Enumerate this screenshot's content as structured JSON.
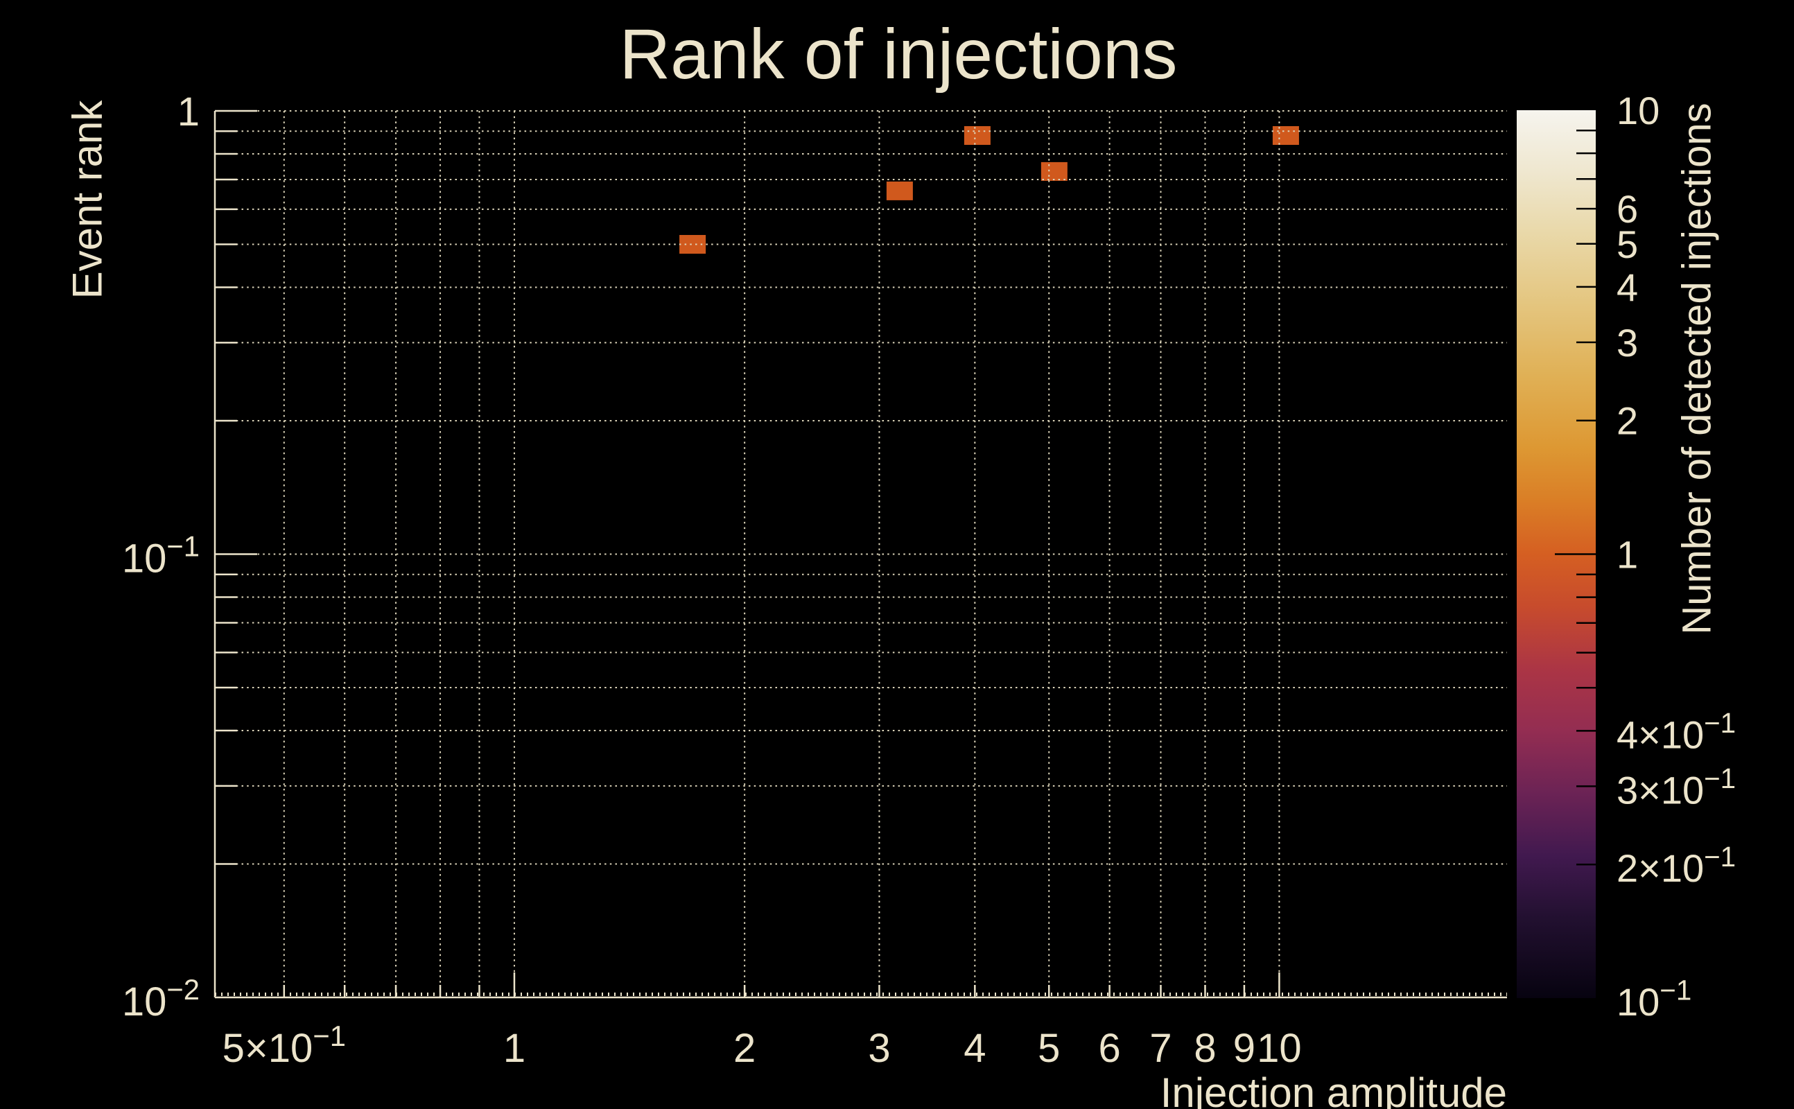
{
  "title": "Rank of injections",
  "colors": {
    "background": "#000000",
    "text": "#ece4cb",
    "grid": "#ddd5ba",
    "axis": "#ece4cb",
    "marker": "#d0591d",
    "colorbar_tick": "#000000"
  },
  "chart_data": {
    "type": "scatter",
    "title": "Rank of injections",
    "xlabel": "Injection amplitude",
    "ylabel": "Event rank",
    "zlabel": "Number of detected injections",
    "x_scale": "log",
    "y_scale": "log",
    "z_scale": "log",
    "xlim": [
      0.406,
      19.85
    ],
    "ylim": [
      0.01,
      1
    ],
    "zlim": [
      0.1,
      10
    ],
    "grid": true,
    "legend_position": "right-colorbar",
    "points": [
      {
        "x": 1.71,
        "y": 0.5,
        "detected": 1
      },
      {
        "x": 3.19,
        "y": 0.66,
        "detected": 1
      },
      {
        "x": 4.03,
        "y": 0.88,
        "detected": 1
      },
      {
        "x": 5.08,
        "y": 0.73,
        "detected": 1
      },
      {
        "x": 10.2,
        "y": 0.88,
        "detected": 1
      }
    ],
    "x_tick_labels": [
      {
        "v": 0.5,
        "parts": [
          [
            "5×10",
            false
          ],
          [
            "−1",
            true
          ]
        ]
      },
      {
        "v": 1,
        "parts": [
          [
            "1",
            false
          ]
        ]
      },
      {
        "v": 2,
        "parts": [
          [
            "2",
            false
          ]
        ]
      },
      {
        "v": 3,
        "parts": [
          [
            "3",
            false
          ]
        ]
      },
      {
        "v": 4,
        "parts": [
          [
            "4",
            false
          ]
        ]
      },
      {
        "v": 5,
        "parts": [
          [
            "5",
            false
          ]
        ]
      },
      {
        "v": 6,
        "parts": [
          [
            "6",
            false
          ]
        ]
      },
      {
        "v": 7,
        "parts": [
          [
            "7",
            false
          ]
        ]
      },
      {
        "v": 8,
        "parts": [
          [
            "8",
            false
          ]
        ]
      },
      {
        "v": 9,
        "parts": [
          [
            "9",
            false
          ]
        ]
      },
      {
        "v": 10,
        "parts": [
          [
            "10",
            false
          ]
        ]
      }
    ],
    "x_minor_ticks": [
      0.5,
      0.6,
      0.7,
      0.8,
      0.9,
      2,
      3,
      4,
      5,
      6,
      7,
      8,
      9
    ],
    "x_major_ticks": [
      1,
      10
    ],
    "y_tick_labels": [
      {
        "v": 1,
        "parts": [
          [
            "1",
            false
          ]
        ]
      },
      {
        "v": 0.1,
        "parts": [
          [
            "10",
            false
          ],
          [
            "−1",
            true
          ]
        ]
      },
      {
        "v": 0.01,
        "parts": [
          [
            "10",
            false
          ],
          [
            "−2",
            true
          ]
        ]
      }
    ],
    "y_minor_ticks": [
      0.02,
      0.03,
      0.04,
      0.05,
      0.06,
      0.07,
      0.08,
      0.09,
      0.2,
      0.3,
      0.4,
      0.5,
      0.6,
      0.7,
      0.8,
      0.9
    ],
    "y_major_ticks": [
      0.1,
      1
    ],
    "colorbar": {
      "tick_labels": [
        {
          "v": 10,
          "parts": [
            [
              "10",
              false
            ]
          ]
        },
        {
          "v": 6,
          "parts": [
            [
              "6",
              false
            ]
          ]
        },
        {
          "v": 5,
          "parts": [
            [
              "5",
              false
            ]
          ]
        },
        {
          "v": 4,
          "parts": [
            [
              "4",
              false
            ]
          ]
        },
        {
          "v": 3,
          "parts": [
            [
              "3",
              false
            ]
          ]
        },
        {
          "v": 2,
          "parts": [
            [
              "2",
              false
            ]
          ]
        },
        {
          "v": 1,
          "parts": [
            [
              "1",
              false
            ]
          ]
        },
        {
          "v": 0.4,
          "parts": [
            [
              "4×10",
              false
            ],
            [
              "−1",
              true
            ]
          ]
        },
        {
          "v": 0.3,
          "parts": [
            [
              "3×10",
              false
            ],
            [
              "−1",
              true
            ]
          ]
        },
        {
          "v": 0.2,
          "parts": [
            [
              "2×10",
              false
            ],
            [
              "−1",
              true
            ]
          ]
        },
        {
          "v": 0.1,
          "parts": [
            [
              "10",
              false
            ],
            [
              "−1",
              true
            ]
          ]
        }
      ],
      "major_ticks": [
        1
      ],
      "minor_ticks": [
        0.2,
        0.3,
        0.4,
        0.5,
        0.6,
        0.7,
        0.8,
        0.9,
        2,
        3,
        4,
        5,
        6,
        7,
        8,
        9
      ],
      "gradient_top_to_bottom": [
        [
          0,
          "#f6f4ee"
        ],
        [
          7,
          "#efe7cf"
        ],
        [
          14,
          "#e9d8a8"
        ],
        [
          22,
          "#e4c57e"
        ],
        [
          30,
          "#e0b055"
        ],
        [
          38,
          "#dd9833"
        ],
        [
          44,
          "#da7e26"
        ],
        [
          50,
          "#d55f22"
        ],
        [
          56,
          "#c74b2d"
        ],
        [
          63,
          "#ab3545"
        ],
        [
          70,
          "#932d52"
        ],
        [
          77,
          "#6b2355"
        ],
        [
          84,
          "#41194f"
        ],
        [
          91,
          "#221030"
        ],
        [
          100,
          "#070310"
        ]
      ]
    }
  }
}
